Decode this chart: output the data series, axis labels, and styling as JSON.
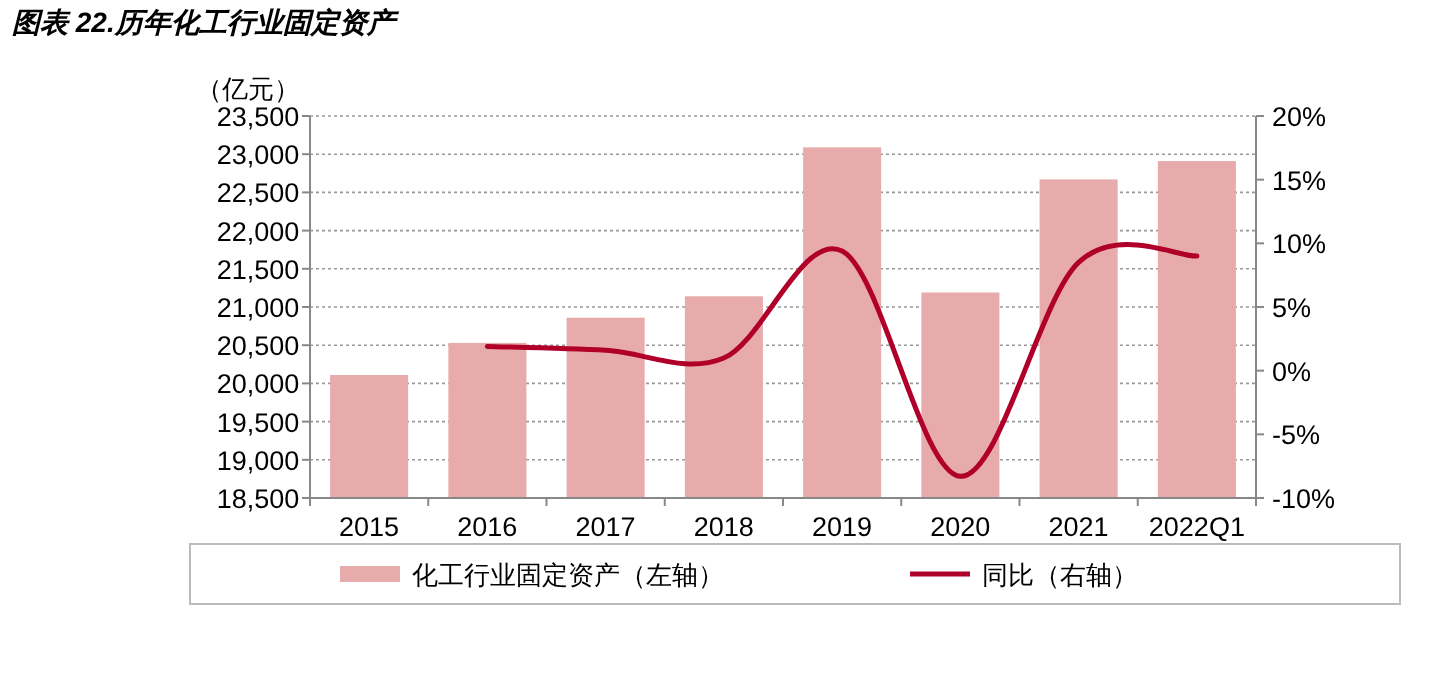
{
  "chart_data": {
    "type": "bar",
    "title": "图表 22.历年化工行业固定资产",
    "ylabel": "（亿元）",
    "categories": [
      "2015",
      "2016",
      "2017",
      "2018",
      "2019",
      "2020",
      "2021",
      "2022Q1"
    ],
    "series": [
      {
        "name": "化工行业固定资产（左轴）",
        "color": "#e8abab",
        "values": [
          20110,
          20530,
          20860,
          21140,
          23090,
          21190,
          22670,
          22910
        ]
      },
      {
        "name": "同比（右轴）",
        "type": "line",
        "axis": "y2",
        "color": "#b0002a",
        "values": [
          null,
          1.9,
          1.6,
          1.0,
          9.4,
          -8.3,
          8.5,
          9.0
        ]
      }
    ],
    "ylim": [
      18500,
      23500
    ],
    "yticks": [
      {
        "value": 18500,
        "label": "18,500"
      },
      {
        "value": 19000,
        "label": "19,000"
      },
      {
        "value": 19500,
        "label": "19,500"
      },
      {
        "value": 20000,
        "label": "20,000"
      },
      {
        "value": 20500,
        "label": "20,500"
      },
      {
        "value": 21000,
        "label": "21,000"
      },
      {
        "value": 21500,
        "label": "21,500"
      },
      {
        "value": 22000,
        "label": "22,000"
      },
      {
        "value": 22500,
        "label": "22,500"
      },
      {
        "value": 23000,
        "label": "23,000"
      },
      {
        "value": 23500,
        "label": "23,500"
      }
    ],
    "y2lim": [
      -10,
      20
    ],
    "y2ticks": [
      {
        "value": -10,
        "label": "-10%"
      },
      {
        "value": -5,
        "label": "-5%"
      },
      {
        "value": 0,
        "label": "0%"
      },
      {
        "value": 5,
        "label": "5%"
      },
      {
        "value": 10,
        "label": "10%"
      },
      {
        "value": 15,
        "label": "15%"
      },
      {
        "value": 20,
        "label": "20%"
      }
    ],
    "grid": "y",
    "legend": "bottom"
  }
}
